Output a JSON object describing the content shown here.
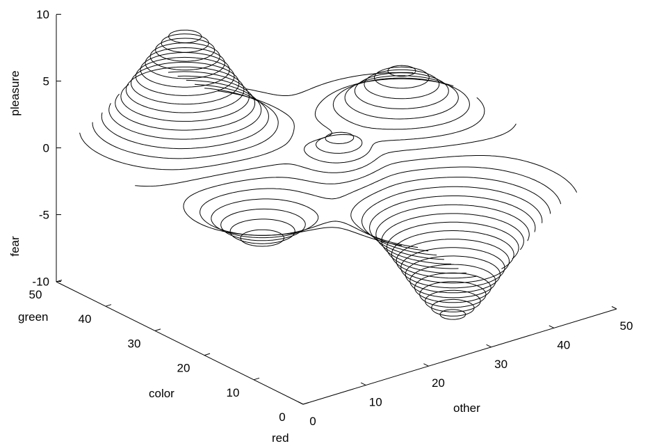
{
  "chart_data": {
    "type": "contour3",
    "title": "",
    "surface": "peaks",
    "z_axis": {
      "range": [
        -10,
        10
      ],
      "ticks": [
        10,
        5,
        0,
        -5,
        -10
      ],
      "labels": [
        "pleasure",
        "fear"
      ]
    },
    "y_axis": {
      "range": [
        0,
        50
      ],
      "ticks": [
        0,
        10,
        20,
        30,
        40,
        50
      ],
      "labels": [
        "green",
        "color",
        "red"
      ]
    },
    "x_axis": {
      "range": [
        0,
        50
      ],
      "ticks": [
        0,
        10,
        20,
        30,
        40,
        50
      ],
      "labels": [
        "other"
      ]
    },
    "peaks": [
      {
        "x": 14.7,
        "y": 42.6,
        "z": 8.1
      },
      {
        "x": 39.9,
        "y": 30.7,
        "z": 3.8
      },
      {
        "x": 25.6,
        "y": 24.9,
        "z": 2.1
      },
      {
        "x": 10.1,
        "y": 21.2,
        "z": -3.4
      },
      {
        "x": 29.7,
        "y": 7.4,
        "z": -9.2
      }
    ],
    "levels": {
      "from": -9.4,
      "to": 8.3,
      "step": 0.5
    },
    "grid": false,
    "legend": "none"
  }
}
